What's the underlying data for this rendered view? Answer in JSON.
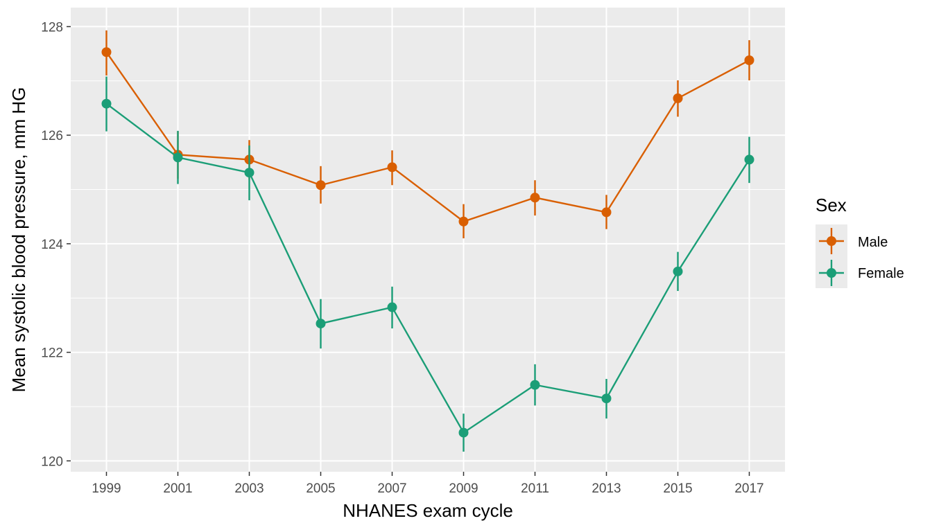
{
  "chart_data": {
    "type": "line",
    "title": "",
    "xlabel": "NHANES exam cycle",
    "ylabel": "Mean systolic blood pressure, mm HG",
    "x": [
      1999,
      2001,
      2003,
      2005,
      2007,
      2009,
      2011,
      2013,
      2015,
      2017
    ],
    "x_tick_labels": [
      "1999",
      "2001",
      "2003",
      "2005",
      "2007",
      "2009",
      "2011",
      "2013",
      "2015",
      "2017"
    ],
    "y_ticks": [
      120,
      122,
      124,
      126,
      128
    ],
    "y_tick_labels": [
      "120",
      "122",
      "124",
      "126",
      "128"
    ],
    "xlim": [
      1998,
      2018
    ],
    "ylim": [
      119.8,
      128.35
    ],
    "grid": true,
    "legend": {
      "title": "Sex",
      "position": "right"
    },
    "series": [
      {
        "name": "Male",
        "color": "#d95f02",
        "values": [
          127.53,
          125.64,
          125.55,
          125.08,
          125.41,
          124.41,
          124.85,
          124.58,
          126.68,
          127.38
        ],
        "lower": [
          127.1,
          125.2,
          125.18,
          124.74,
          125.08,
          124.1,
          124.52,
          124.27,
          126.34,
          127.01
        ],
        "upper": [
          127.93,
          126.07,
          125.91,
          125.43,
          125.72,
          124.73,
          125.17,
          124.9,
          127.01,
          127.75
        ]
      },
      {
        "name": "Female",
        "color": "#1b9e77",
        "values": [
          126.58,
          125.59,
          125.31,
          122.53,
          122.83,
          120.52,
          121.4,
          121.15,
          123.49,
          125.55
        ],
        "lower": [
          126.07,
          125.1,
          124.8,
          122.07,
          122.44,
          120.17,
          121.02,
          120.78,
          123.13,
          125.12
        ],
        "upper": [
          127.08,
          126.08,
          125.81,
          122.98,
          123.21,
          120.87,
          121.78,
          121.51,
          123.85,
          125.97
        ]
      }
    ]
  }
}
